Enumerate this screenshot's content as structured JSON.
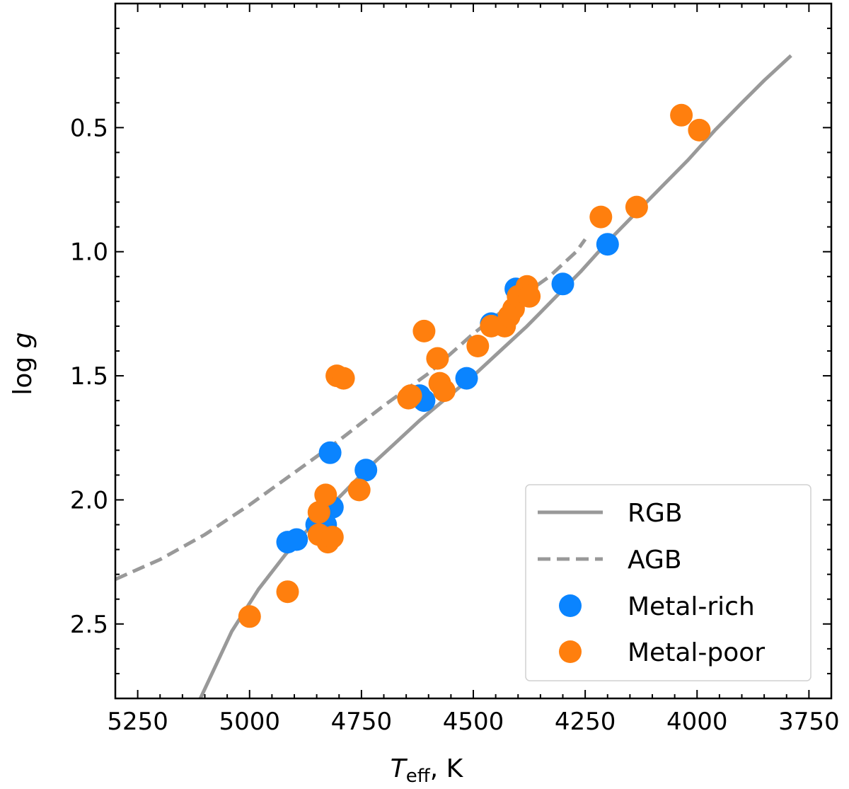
{
  "chart_data": {
    "type": "scatter",
    "title": "",
    "xlabel_main": "T",
    "xlabel_sub": "eff",
    "xlabel_unit": ", K",
    "ylabel_main": "log ",
    "ylabel_italic": "g",
    "xlim": [
      5300,
      3700
    ],
    "ylim": [
      2.8,
      0.0
    ],
    "x_inverted": true,
    "y_inverted": true,
    "x_ticks": [
      5250,
      5000,
      4750,
      4500,
      4250,
      4000,
      3750
    ],
    "x_tick_labels": [
      "5250",
      "5000",
      "4750",
      "4500",
      "4250",
      "4000",
      "3750"
    ],
    "y_ticks": [
      0.5,
      1.0,
      1.5,
      2.0,
      2.5
    ],
    "y_tick_labels": [
      "0.5",
      "1.0",
      "1.5",
      "2.0",
      "2.5"
    ],
    "legend_position": "bottom-right",
    "series": [
      {
        "name": "RGB",
        "kind": "line",
        "style": "solid",
        "color": "#999999",
        "x": [
          5110,
          5040,
          4980,
          4920,
          4860,
          4800,
          4740,
          4680,
          4620,
          4560,
          4500,
          4440,
          4380,
          4320,
          4260,
          4200,
          4140,
          4080,
          4020,
          3960,
          3900,
          3850,
          3790
        ],
        "y": [
          2.8,
          2.53,
          2.36,
          2.22,
          2.1,
          1.99,
          1.88,
          1.78,
          1.68,
          1.59,
          1.5,
          1.4,
          1.3,
          1.19,
          1.08,
          0.96,
          0.85,
          0.74,
          0.63,
          0.51,
          0.4,
          0.31,
          0.21
        ]
      },
      {
        "name": "AGB",
        "kind": "line",
        "style": "dashed",
        "color": "#999999",
        "x": [
          5300,
          5200,
          5100,
          5000,
          4900,
          4800,
          4700,
          4600,
          4500,
          4400,
          4330,
          4270,
          4250
        ],
        "y": [
          2.32,
          2.24,
          2.14,
          2.02,
          1.89,
          1.76,
          1.62,
          1.49,
          1.33,
          1.19,
          1.1,
          1.0,
          0.95
        ]
      },
      {
        "name": "Metal-rich",
        "kind": "scatter",
        "color": "#0a84ff",
        "x": [
          4915,
          4895,
          4850,
          4830,
          4815,
          4820,
          4740,
          4620,
          4610,
          4515,
          4460,
          4405,
          4300,
          4200
        ],
        "y": [
          2.17,
          2.16,
          2.1,
          2.1,
          2.03,
          1.81,
          1.88,
          1.58,
          1.6,
          1.51,
          1.29,
          1.15,
          1.13,
          0.97
        ]
      },
      {
        "name": "Metal-poor",
        "kind": "scatter",
        "color": "#ff7f0e",
        "x": [
          5000,
          4915,
          4845,
          4845,
          4830,
          4825,
          4815,
          4805,
          4790,
          4755,
          4645,
          4640,
          4610,
          4580,
          4575,
          4565,
          4490,
          4460,
          4430,
          4420,
          4410,
          4400,
          4380,
          4375,
          4215,
          4135,
          4035,
          3995
        ],
        "y": [
          2.47,
          2.37,
          2.05,
          2.14,
          1.98,
          2.17,
          2.15,
          1.5,
          1.51,
          1.96,
          1.59,
          1.58,
          1.32,
          1.43,
          1.53,
          1.56,
          1.38,
          1.3,
          1.3,
          1.26,
          1.23,
          1.18,
          1.14,
          1.18,
          0.86,
          0.82,
          0.45,
          0.51
        ]
      }
    ]
  }
}
